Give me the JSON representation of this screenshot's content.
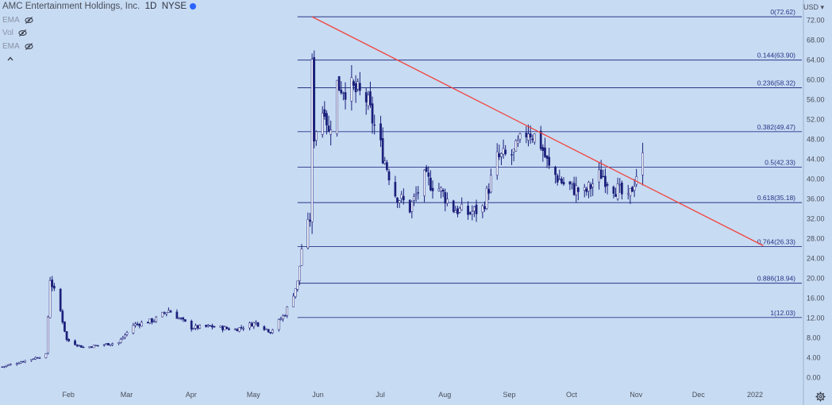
{
  "header": {
    "symbol_name": "AMC Entertainment Holdings, Inc.",
    "interval": "1D",
    "exchange": "NYSE",
    "indicators": [
      {
        "label": "EMA"
      },
      {
        "label": "Vol"
      },
      {
        "label": "EMA"
      }
    ]
  },
  "price_axis": {
    "currency": "USD",
    "ticks": [
      "0.00",
      "4.00",
      "8.00",
      "12.00",
      "16.00",
      "20.00",
      "24.00",
      "28.00",
      "32.00",
      "36.00",
      "40.00",
      "44.00",
      "48.00",
      "52.00",
      "56.00",
      "60.00",
      "64.00",
      "68.00",
      "72.00"
    ]
  },
  "colors": {
    "background": "#c7dbf3",
    "fib_line": "#2a3486",
    "trendline": "#f2443c",
    "candle_up": "#ffffff",
    "candle_down": "#1a1f7a",
    "text": "#2a3486"
  },
  "chart_data": {
    "type": "candlestick",
    "title": "AMC Entertainment Holdings, Inc. 1D NYSE",
    "x_labels": [
      "Feb",
      "Mar",
      "Apr",
      "May",
      "Jun",
      "Jul",
      "Aug",
      "Sep",
      "Oct",
      "Nov",
      "Dec",
      "2022"
    ],
    "ylim": [
      0,
      74
    ],
    "y_scale": "linear",
    "grid": false,
    "fibonacci_levels": [
      {
        "ratio": "0",
        "price": "72.62"
      },
      {
        "ratio": "0.144",
        "price": "63.90"
      },
      {
        "ratio": "0.236",
        "price": "58.32"
      },
      {
        "ratio": "0.382",
        "price": "49.47"
      },
      {
        "ratio": "0.5",
        "price": "42.33"
      },
      {
        "ratio": "0.618",
        "price": "35.18"
      },
      {
        "ratio": "0.764",
        "price": "26.33"
      },
      {
        "ratio": "0.886",
        "price": "18.94"
      },
      {
        "ratio": "1",
        "price": "12.03"
      }
    ],
    "trendline": {
      "start": {
        "date": "2021-06-02",
        "price": 72.62
      },
      "end": {
        "date": "2022-01-05",
        "price": 26.5
      }
    },
    "price_path": [
      {
        "date": "2021-01-04",
        "price": 2.1
      },
      {
        "date": "2021-01-25",
        "price": 4.5
      },
      {
        "date": "2021-01-27",
        "price": 19.9
      },
      {
        "date": "2021-02-01",
        "price": 13.3
      },
      {
        "date": "2021-02-04",
        "price": 7.5
      },
      {
        "date": "2021-02-12",
        "price": 6.0
      },
      {
        "date": "2021-03-01",
        "price": 7.0
      },
      {
        "date": "2021-03-08",
        "price": 10.5
      },
      {
        "date": "2021-03-18",
        "price": 11.5
      },
      {
        "date": "2021-03-25",
        "price": 13.5
      },
      {
        "date": "2021-04-05",
        "price": 10.0
      },
      {
        "date": "2021-04-15",
        "price": 10.2
      },
      {
        "date": "2021-04-26",
        "price": 9.6
      },
      {
        "date": "2021-05-06",
        "price": 11.0
      },
      {
        "date": "2021-05-13",
        "price": 9.2
      },
      {
        "date": "2021-05-20",
        "price": 12.8
      },
      {
        "date": "2021-05-26",
        "price": 19.0
      },
      {
        "date": "2021-05-28",
        "price": 26.0
      },
      {
        "date": "2021-06-01",
        "price": 32.0
      },
      {
        "date": "2021-06-02",
        "price": 62.0
      },
      {
        "date": "2021-06-03",
        "price": 49.0
      },
      {
        "date": "2021-06-08",
        "price": 55.0
      },
      {
        "date": "2021-06-10",
        "price": 49.0
      },
      {
        "date": "2021-06-14",
        "price": 59.0
      },
      {
        "date": "2021-06-21",
        "price": 58.0
      },
      {
        "date": "2021-06-28",
        "price": 56.0
      },
      {
        "date": "2021-07-06",
        "price": 45.0
      },
      {
        "date": "2021-07-12",
        "price": 37.0
      },
      {
        "date": "2021-07-19",
        "price": 34.0
      },
      {
        "date": "2021-07-26",
        "price": 40.0
      },
      {
        "date": "2021-08-02",
        "price": 38.0
      },
      {
        "date": "2021-08-09",
        "price": 34.0
      },
      {
        "date": "2021-08-16",
        "price": 33.0
      },
      {
        "date": "2021-08-23",
        "price": 34.0
      },
      {
        "date": "2021-08-30",
        "price": 44.0
      },
      {
        "date": "2021-09-07",
        "price": 45.0
      },
      {
        "date": "2021-09-14",
        "price": 50.0
      },
      {
        "date": "2021-09-20",
        "price": 47.0
      },
      {
        "date": "2021-09-24",
        "price": 42.0
      },
      {
        "date": "2021-10-01",
        "price": 39.0
      },
      {
        "date": "2021-10-11",
        "price": 37.0
      },
      {
        "date": "2021-10-19",
        "price": 41.0
      },
      {
        "date": "2021-10-25",
        "price": 38.5
      },
      {
        "date": "2021-11-01",
        "price": 35.5
      },
      {
        "date": "2021-11-05",
        "price": 41.0
      },
      {
        "date": "2021-11-08",
        "price": 44.0
      }
    ]
  }
}
